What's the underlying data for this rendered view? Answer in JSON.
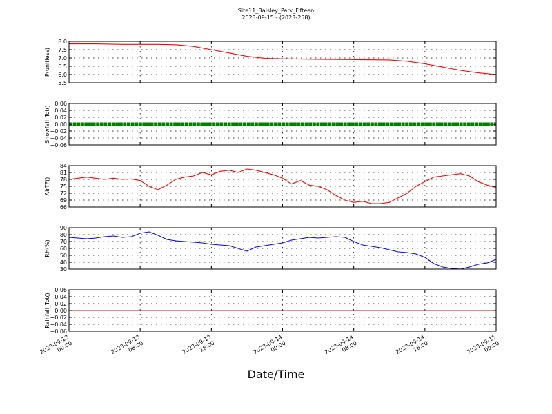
{
  "title": "Site11_Baisley_Park_Fifteen",
  "subtitle": "2023-09-15 - (2023-258)",
  "xlabel": "Date/Time",
  "x_ticks": [
    {
      "t": 0,
      "line1": "2023-09-13",
      "line2": "00:00"
    },
    {
      "t": 8,
      "line1": "2023-09-13",
      "line2": "08:00"
    },
    {
      "t": 16,
      "line1": "2023-09-13",
      "line2": "16:00"
    },
    {
      "t": 24,
      "line1": "2023-09-14",
      "line2": "00:00"
    },
    {
      "t": 32,
      "line1": "2023-09-14",
      "line2": "08:00"
    },
    {
      "t": 40,
      "line1": "2023-09-14",
      "line2": "16:00"
    },
    {
      "t": 48,
      "line1": "2023-09-15",
      "line2": "00:00"
    }
  ],
  "chart_data": [
    {
      "type": "line",
      "ylabel": "P(unitless)",
      "ylim": [
        5.5,
        8.0
      ],
      "yticks": [
        "8.0",
        "7.5",
        "7.0",
        "6.5",
        "6.0",
        "5.5"
      ],
      "xlim": [
        "2023-09-13 00:00",
        "2023-09-15 00:00"
      ],
      "grid": true,
      "color": "#ff0000",
      "marker": "none",
      "series": [
        {
          "x": [
            "2023-09-13 00:00",
            "2023-09-13 03:00",
            "2023-09-13 06:00",
            "2023-09-13 10:00",
            "2023-09-13 12:00",
            "2023-09-13 14:00",
            "2023-09-13 16:00",
            "2023-09-13 18:00",
            "2023-09-13 20:00",
            "2023-09-13 22:00",
            "2023-09-14 00:00",
            "2023-09-14 04:00",
            "2023-09-14 08:00",
            "2023-09-14 12:00",
            "2023-09-14 14:00",
            "2023-09-14 16:00",
            "2023-09-14 18:00",
            "2023-09-14 20:00",
            "2023-09-14 22:00",
            "2023-09-15 00:00"
          ],
          "y": [
            7.85,
            7.85,
            7.82,
            7.82,
            7.8,
            7.7,
            7.5,
            7.3,
            7.1,
            6.98,
            6.95,
            6.92,
            6.9,
            6.88,
            6.8,
            6.65,
            6.45,
            6.25,
            6.1,
            6.0
          ]
        }
      ]
    },
    {
      "type": "line",
      "ylabel": "Snowfall_Tot()",
      "ylim": [
        -0.06,
        0.06
      ],
      "yticks": [
        "0.06",
        "0.04",
        "0.02",
        "0.00",
        "−0.02",
        "−0.04",
        "−0.06"
      ],
      "xlim": [
        "2023-09-13 00:00",
        "2023-09-15 00:00"
      ],
      "grid": true,
      "color": "#008000",
      "marker": "dots",
      "series": [
        {
          "x": [
            "2023-09-13 00:00",
            "2023-09-15 00:00"
          ],
          "y": [
            0.0,
            0.0
          ]
        }
      ]
    },
    {
      "type": "line",
      "ylabel": "AirTF()",
      "ylim": [
        66,
        84
      ],
      "yticks": [
        "84",
        "81",
        "78",
        "75",
        "72",
        "69",
        "66"
      ],
      "xlim": [
        "2023-09-13 00:00",
        "2023-09-15 00:00"
      ],
      "grid": true,
      "color": "#ff0000",
      "marker": "none",
      "series": [
        {
          "x": [
            "2023-09-13 00:00",
            "2023-09-13 01:00",
            "2023-09-13 02:00",
            "2023-09-13 03:00",
            "2023-09-13 04:00",
            "2023-09-13 05:00",
            "2023-09-13 06:00",
            "2023-09-13 07:00",
            "2023-09-13 08:00",
            "2023-09-13 09:00",
            "2023-09-13 10:00",
            "2023-09-13 11:00",
            "2023-09-13 12:00",
            "2023-09-13 13:00",
            "2023-09-13 14:00",
            "2023-09-13 15:00",
            "2023-09-13 16:00",
            "2023-09-13 17:00",
            "2023-09-13 18:00",
            "2023-09-13 19:00",
            "2023-09-13 20:00",
            "2023-09-13 21:00",
            "2023-09-13 22:00",
            "2023-09-13 23:00",
            "2023-09-14 00:00",
            "2023-09-14 01:00",
            "2023-09-14 02:00",
            "2023-09-14 03:00",
            "2023-09-14 04:00",
            "2023-09-14 05:00",
            "2023-09-14 06:00",
            "2023-09-14 07:00",
            "2023-09-14 08:00",
            "2023-09-14 09:00",
            "2023-09-14 10:00",
            "2023-09-14 11:00",
            "2023-09-14 12:00",
            "2023-09-14 13:00",
            "2023-09-14 14:00",
            "2023-09-14 15:00",
            "2023-09-14 16:00",
            "2023-09-14 17:00",
            "2023-09-14 18:00",
            "2023-09-14 19:00",
            "2023-09-14 20:00",
            "2023-09-14 21:00",
            "2023-09-14 22:00",
            "2023-09-14 23:00",
            "2023-09-15 00:00"
          ],
          "y": [
            78,
            78.5,
            79,
            78.5,
            78,
            78.5,
            78,
            78.2,
            77.5,
            75,
            73.5,
            75.5,
            78,
            79,
            79.5,
            81,
            80,
            81.5,
            82,
            81,
            82.5,
            82,
            81,
            80,
            78.5,
            76,
            77.5,
            75.5,
            75,
            73.5,
            71,
            69,
            68,
            68.5,
            67.5,
            67.5,
            68,
            70,
            72,
            75,
            77,
            79,
            79.5,
            80,
            80.5,
            79.5,
            77,
            75.5,
            74.5
          ]
        }
      ]
    },
    {
      "type": "line",
      "ylabel": "RH(%)",
      "ylim": [
        30,
        90
      ],
      "yticks": [
        "90",
        "80",
        "70",
        "60",
        "50",
        "40",
        "30"
      ],
      "xlim": [
        "2023-09-13 00:00",
        "2023-09-15 00:00"
      ],
      "grid": true,
      "color": "#0000ff",
      "marker": "none",
      "series": [
        {
          "x": [
            "2023-09-13 00:00",
            "2023-09-13 01:00",
            "2023-09-13 02:00",
            "2023-09-13 03:00",
            "2023-09-13 04:00",
            "2023-09-13 05:00",
            "2023-09-13 06:00",
            "2023-09-13 07:00",
            "2023-09-13 08:00",
            "2023-09-13 09:00",
            "2023-09-13 10:00",
            "2023-09-13 11:00",
            "2023-09-13 12:00",
            "2023-09-13 13:00",
            "2023-09-13 14:00",
            "2023-09-13 15:00",
            "2023-09-13 16:00",
            "2023-09-13 17:00",
            "2023-09-13 18:00",
            "2023-09-13 19:00",
            "2023-09-13 20:00",
            "2023-09-13 21:00",
            "2023-09-13 22:00",
            "2023-09-13 23:00",
            "2023-09-14 00:00",
            "2023-09-14 01:00",
            "2023-09-14 02:00",
            "2023-09-14 03:00",
            "2023-09-14 04:00",
            "2023-09-14 05:00",
            "2023-09-14 06:00",
            "2023-09-14 07:00",
            "2023-09-14 08:00",
            "2023-09-14 09:00",
            "2023-09-14 10:00",
            "2023-09-14 11:00",
            "2023-09-14 12:00",
            "2023-09-14 13:00",
            "2023-09-14 14:00",
            "2023-09-14 15:00",
            "2023-09-14 16:00",
            "2023-09-14 17:00",
            "2023-09-14 18:00",
            "2023-09-14 19:00",
            "2023-09-14 20:00",
            "2023-09-14 21:00",
            "2023-09-14 22:00",
            "2023-09-14 23:00",
            "2023-09-15 00:00"
          ],
          "y": [
            76,
            75,
            74,
            75,
            77,
            78,
            76,
            77,
            82,
            84,
            79,
            73,
            71,
            70,
            69,
            68,
            66,
            65,
            64,
            60,
            56,
            62,
            64,
            66,
            68,
            72,
            74,
            76,
            75,
            76,
            77,
            76,
            70,
            65,
            63,
            61,
            58,
            55,
            54,
            52,
            47,
            38,
            33,
            31,
            30,
            33,
            37,
            39,
            44
          ]
        }
      ]
    },
    {
      "type": "line",
      "ylabel": "Rainfall_Tot()",
      "ylim": [
        -0.06,
        0.06
      ],
      "yticks": [
        "0.06",
        "0.04",
        "0.02",
        "0.00",
        "−0.02",
        "−0.04",
        "−0.06"
      ],
      "xlim": [
        "2023-09-13 00:00",
        "2023-09-15 00:00"
      ],
      "grid": true,
      "color": "#ff0000",
      "marker": "none",
      "series": [
        {
          "x": [
            "2023-09-13 00:00",
            "2023-09-15 00:00"
          ],
          "y": [
            0.0,
            0.0
          ]
        }
      ]
    }
  ]
}
